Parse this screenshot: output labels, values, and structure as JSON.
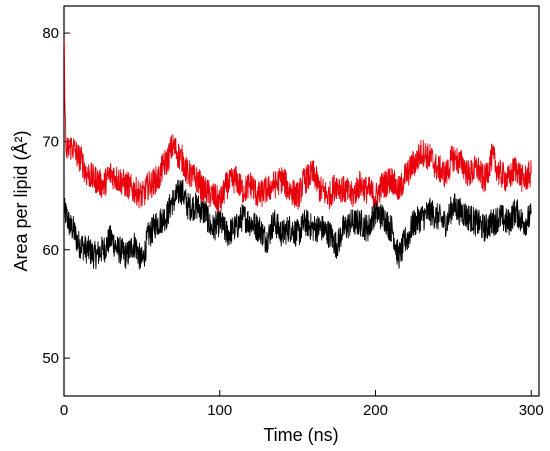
{
  "chart_data": {
    "type": "line",
    "title": "",
    "xlabel": "Time (ns)",
    "ylabel": "Area per lipid (Å²)",
    "xlim": [
      0,
      305
    ],
    "ylim": [
      46.5,
      82.5
    ],
    "xticks": [
      0,
      100,
      200,
      300
    ],
    "yticks": [
      50,
      60,
      70,
      80
    ],
    "grid": false,
    "legend": "none",
    "series": [
      {
        "color": "#000000",
        "x": [
          0,
          5,
          10,
          15,
          20,
          25,
          30,
          35,
          40,
          45,
          50,
          55,
          60,
          65,
          70,
          75,
          80,
          85,
          90,
          95,
          100,
          105,
          110,
          115,
          120,
          125,
          130,
          135,
          140,
          145,
          150,
          155,
          160,
          165,
          170,
          175,
          180,
          185,
          190,
          195,
          200,
          205,
          210,
          215,
          220,
          225,
          230,
          235,
          240,
          245,
          250,
          255,
          260,
          265,
          270,
          275,
          280,
          285,
          290,
          295,
          300
        ],
        "values": [
          63.5,
          62.0,
          60.5,
          60.0,
          59.5,
          60.0,
          61.0,
          60.0,
          59.5,
          60.5,
          59.0,
          61.5,
          62.5,
          63.0,
          64.5,
          65.5,
          64.0,
          64.0,
          63.5,
          62.0,
          62.5,
          61.5,
          62.0,
          63.0,
          62.5,
          62.0,
          61.0,
          62.5,
          61.5,
          62.0,
          61.5,
          62.5,
          62.0,
          62.0,
          61.5,
          60.5,
          62.0,
          62.5,
          62.5,
          62.0,
          63.5,
          63.0,
          62.0,
          59.5,
          61.0,
          62.5,
          63.0,
          63.5,
          63.0,
          62.5,
          64.0,
          63.5,
          63.0,
          62.5,
          62.0,
          62.5,
          63.0,
          62.5,
          63.5,
          62.5,
          63.0
        ]
      },
      {
        "color": "#e8000b",
        "x": [
          0,
          5,
          10,
          15,
          20,
          25,
          30,
          35,
          40,
          45,
          50,
          55,
          60,
          65,
          70,
          75,
          80,
          85,
          90,
          95,
          100,
          105,
          110,
          115,
          120,
          125,
          130,
          135,
          140,
          145,
          150,
          155,
          160,
          165,
          170,
          175,
          180,
          185,
          190,
          195,
          200,
          205,
          210,
          215,
          220,
          225,
          230,
          235,
          240,
          245,
          250,
          255,
          260,
          265,
          270,
          275,
          280,
          285,
          290,
          295,
          300
        ],
        "values": [
          69.0,
          69.5,
          68.5,
          67.0,
          66.5,
          66.0,
          67.0,
          66.5,
          66.0,
          65.5,
          65.0,
          66.0,
          66.5,
          68.0,
          69.5,
          68.5,
          67.0,
          66.5,
          65.5,
          65.0,
          64.5,
          66.0,
          66.5,
          65.5,
          66.0,
          65.0,
          65.5,
          66.0,
          66.5,
          65.5,
          65.0,
          66.5,
          67.0,
          65.5,
          65.0,
          66.0,
          65.5,
          65.0,
          66.0,
          65.5,
          65.0,
          66.0,
          66.5,
          65.5,
          67.0,
          68.0,
          69.0,
          68.5,
          67.5,
          67.0,
          68.5,
          68.0,
          67.0,
          67.5,
          66.5,
          68.5,
          67.0,
          66.5,
          67.5,
          66.5,
          67.0
        ]
      }
    ]
  }
}
